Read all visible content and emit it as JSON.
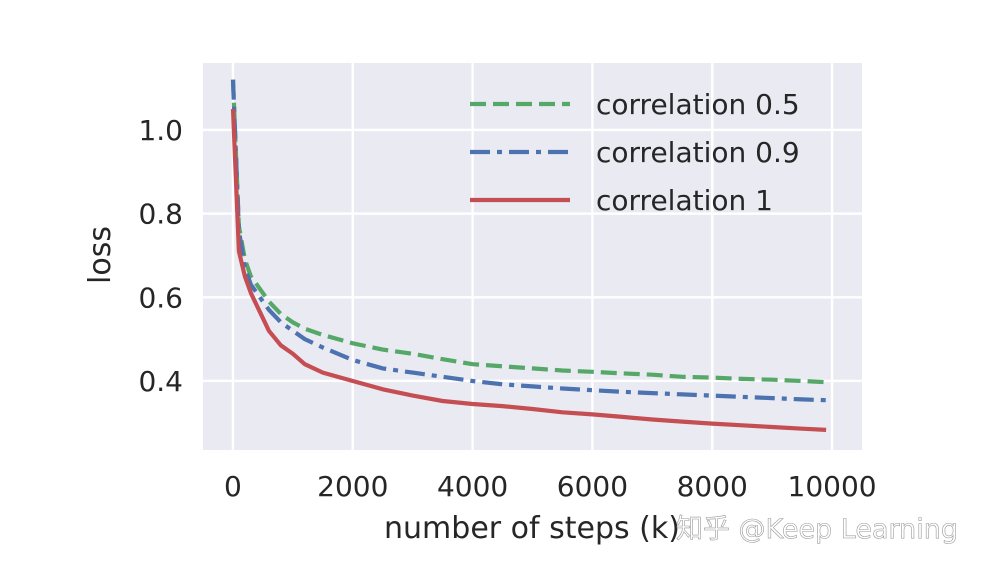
{
  "chart_data": {
    "type": "line",
    "title": "",
    "xlabel": "number of steps (k)",
    "ylabel": "loss",
    "xlim": [
      -500,
      10500
    ],
    "ylim": [
      0.235,
      1.16
    ],
    "grid": true,
    "legend_position": "top-right",
    "x_ticks": [
      0,
      2000,
      4000,
      6000,
      8000,
      10000
    ],
    "x_tick_labels": [
      "0",
      "2000",
      "4000",
      "6000",
      "8000",
      "10000"
    ],
    "y_ticks": [
      0.4,
      0.6,
      0.8,
      1.0
    ],
    "y_tick_labels": [
      "0.4",
      "0.6",
      "0.8",
      "1.0"
    ],
    "x": [
      0,
      100,
      200,
      300,
      400,
      500,
      600,
      800,
      1000,
      1200,
      1500,
      2000,
      2500,
      3000,
      3500,
      4000,
      4500,
      5000,
      5500,
      6000,
      6500,
      7000,
      7500,
      8000,
      8500,
      9000,
      9500,
      9900
    ],
    "series": [
      {
        "name": "correlation 0.5",
        "color": "#55a868",
        "dash": "dashed",
        "values": [
          1.12,
          0.77,
          0.69,
          0.65,
          0.63,
          0.61,
          0.59,
          0.56,
          0.54,
          0.525,
          0.51,
          0.49,
          0.475,
          0.465,
          0.452,
          0.44,
          0.435,
          0.43,
          0.425,
          0.422,
          0.418,
          0.415,
          0.41,
          0.408,
          0.405,
          0.403,
          0.4,
          0.397
        ]
      },
      {
        "name": "correlation 0.9",
        "color": "#4c72b0",
        "dash": "dashdot",
        "values": [
          1.12,
          0.76,
          0.67,
          0.63,
          0.61,
          0.59,
          0.57,
          0.54,
          0.52,
          0.5,
          0.48,
          0.45,
          0.43,
          0.42,
          0.41,
          0.4,
          0.392,
          0.387,
          0.382,
          0.378,
          0.374,
          0.371,
          0.368,
          0.365,
          0.362,
          0.359,
          0.356,
          0.354
        ]
      },
      {
        "name": "correlation 1",
        "color": "#c44e52",
        "dash": "solid",
        "values": [
          1.05,
          0.71,
          0.65,
          0.61,
          0.58,
          0.55,
          0.52,
          0.485,
          0.465,
          0.44,
          0.42,
          0.4,
          0.38,
          0.365,
          0.352,
          0.345,
          0.34,
          0.333,
          0.325,
          0.32,
          0.314,
          0.308,
          0.303,
          0.298,
          0.294,
          0.29,
          0.286,
          0.283
        ]
      }
    ],
    "colors": {
      "plot_background": "#eaeaf2",
      "grid": "#ffffff",
      "text": "#262626"
    }
  },
  "watermark": "知乎 @Keep Learning"
}
